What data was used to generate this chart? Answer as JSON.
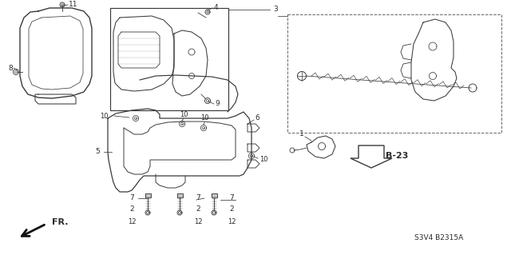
{
  "bg_color": "#ffffff",
  "diagram_code": "S3V4 B2315A",
  "ref_label": "B-23",
  "line_color": "#3a3a3a",
  "text_color": "#2a2a2a",
  "fig_width": 6.4,
  "fig_height": 3.19,
  "dpi": 100
}
